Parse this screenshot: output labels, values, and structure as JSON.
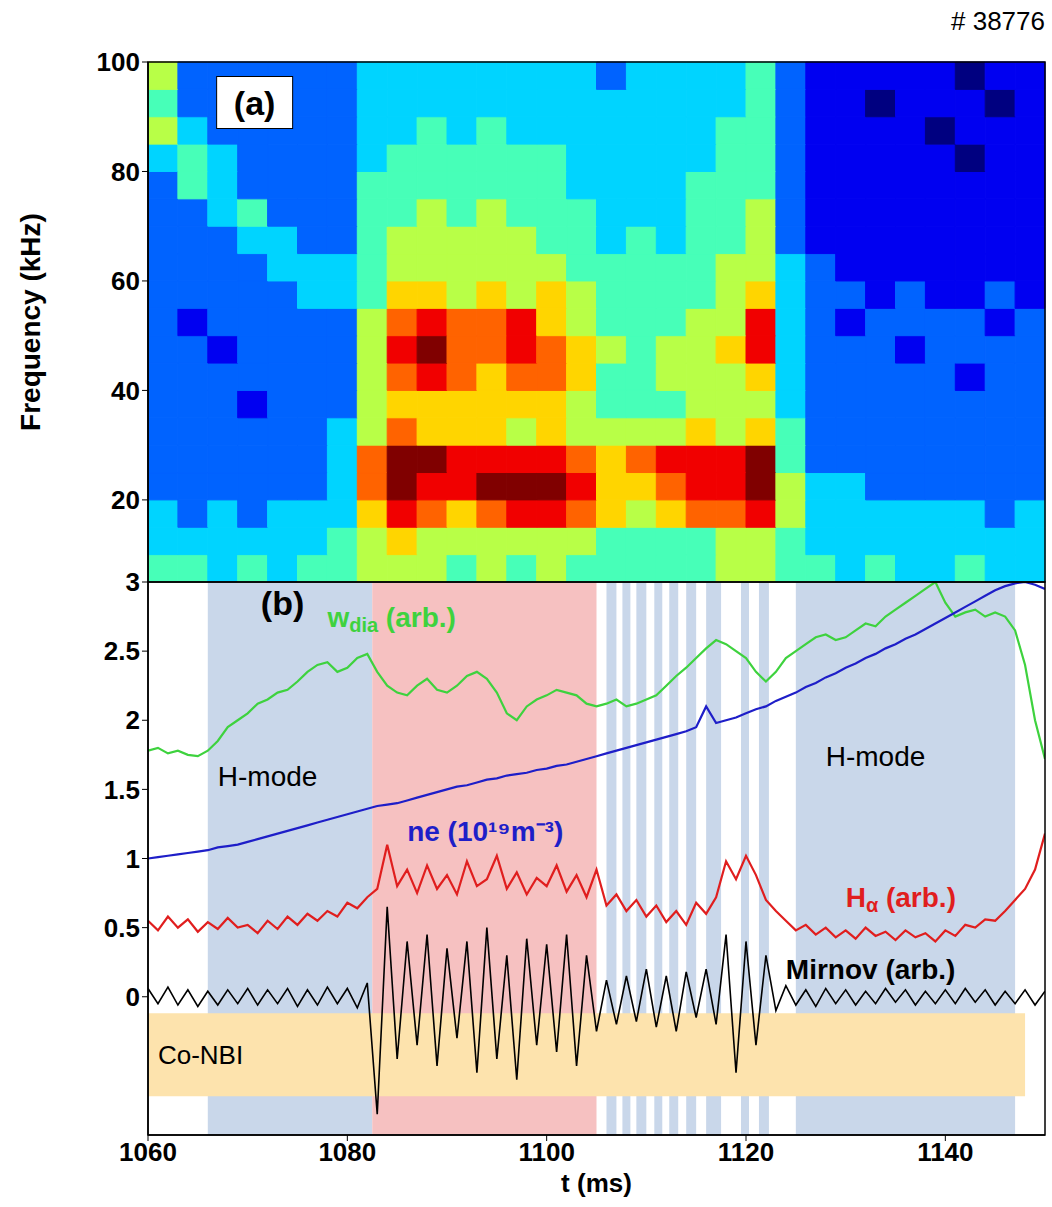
{
  "chart_data": [
    {
      "type": "heatmap",
      "title": "# 38776",
      "label": "(a)",
      "y_label": "Frequency (kHz)",
      "xlim": [
        1060,
        1150
      ],
      "ylim": [
        5,
        100
      ],
      "yticks": [
        20,
        40,
        60,
        80,
        100
      ],
      "tick_labels": "y",
      "color_range": [
        0,
        9
      ],
      "x_edges": [
        1060,
        1063,
        1066,
        1069,
        1072,
        1075,
        1078,
        1081,
        1084,
        1087,
        1090,
        1093,
        1096,
        1099,
        1102,
        1105,
        1108,
        1111,
        1114,
        1117,
        1120,
        1123,
        1126,
        1129,
        1132,
        1135,
        1138,
        1141,
        1144,
        1147,
        1150
      ],
      "y_edges": [
        5,
        10,
        15,
        20,
        25,
        30,
        35,
        40,
        45,
        50,
        55,
        60,
        65,
        70,
        75,
        80,
        85,
        90,
        95,
        100
      ],
      "cells": [
        [
          4,
          4,
          3,
          4,
          3,
          4,
          4,
          5,
          5,
          5,
          4,
          5,
          4,
          5,
          4,
          4,
          4,
          4,
          4,
          5,
          5,
          4,
          4,
          3,
          4,
          3,
          3,
          4,
          3,
          3
        ],
        [
          3,
          3,
          3,
          3,
          3,
          3,
          4,
          5,
          6,
          5,
          5,
          5,
          5,
          5,
          5,
          4,
          4,
          4,
          4,
          5,
          5,
          4,
          3,
          3,
          3,
          3,
          3,
          3,
          3,
          3
        ],
        [
          3,
          2,
          3,
          2,
          3,
          3,
          3,
          6,
          8,
          7,
          6,
          7,
          8,
          8,
          7,
          6,
          5,
          6,
          7,
          7,
          8,
          5,
          3,
          3,
          3,
          3,
          3,
          3,
          2,
          3
        ],
        [
          2,
          2,
          2,
          2,
          2,
          2,
          3,
          7,
          9,
          8,
          8,
          9,
          9,
          9,
          8,
          6,
          6,
          7,
          8,
          8,
          9,
          5,
          3,
          3,
          2,
          2,
          2,
          2,
          2,
          2
        ],
        [
          2,
          2,
          2,
          2,
          2,
          2,
          3,
          7,
          9,
          9,
          8,
          8,
          8,
          8,
          7,
          6,
          7,
          8,
          8,
          8,
          9,
          4,
          2,
          2,
          2,
          2,
          2,
          2,
          2,
          2
        ],
        [
          2,
          2,
          2,
          2,
          2,
          2,
          3,
          5,
          7,
          6,
          6,
          6,
          5,
          6,
          5,
          5,
          5,
          5,
          6,
          5,
          6,
          4,
          2,
          2,
          2,
          2,
          2,
          2,
          2,
          2
        ],
        [
          2,
          2,
          2,
          1,
          2,
          2,
          2,
          5,
          6,
          6,
          6,
          6,
          6,
          6,
          5,
          4,
          4,
          4,
          5,
          5,
          5,
          3,
          2,
          2,
          2,
          2,
          2,
          2,
          2,
          2
        ],
        [
          2,
          2,
          2,
          2,
          2,
          2,
          2,
          5,
          7,
          8,
          7,
          6,
          7,
          7,
          6,
          4,
          4,
          5,
          5,
          5,
          6,
          3,
          2,
          2,
          2,
          2,
          2,
          1,
          2,
          2
        ],
        [
          2,
          2,
          1,
          2,
          2,
          2,
          2,
          5,
          8,
          9,
          7,
          7,
          8,
          7,
          6,
          5,
          4,
          5,
          5,
          6,
          8,
          3,
          2,
          2,
          2,
          1,
          2,
          2,
          2,
          2
        ],
        [
          2,
          1,
          2,
          2,
          2,
          2,
          2,
          5,
          7,
          8,
          7,
          7,
          8,
          6,
          5,
          4,
          4,
          4,
          5,
          5,
          8,
          3,
          2,
          1,
          2,
          2,
          2,
          2,
          1,
          2
        ],
        [
          2,
          2,
          2,
          2,
          2,
          3,
          3,
          4,
          6,
          6,
          5,
          6,
          5,
          6,
          5,
          4,
          4,
          4,
          4,
          5,
          6,
          3,
          2,
          2,
          1,
          2,
          1,
          1,
          2,
          1
        ],
        [
          2,
          2,
          2,
          2,
          3,
          3,
          3,
          4,
          5,
          5,
          5,
          5,
          5,
          5,
          4,
          4,
          4,
          4,
          4,
          5,
          5,
          3,
          2,
          1,
          1,
          1,
          1,
          1,
          1,
          1
        ],
        [
          2,
          2,
          2,
          3,
          3,
          2,
          2,
          4,
          5,
          5,
          5,
          5,
          5,
          4,
          4,
          3,
          4,
          3,
          4,
          4,
          5,
          2,
          1,
          1,
          1,
          1,
          1,
          1,
          1,
          1
        ],
        [
          2,
          2,
          3,
          4,
          2,
          2,
          2,
          4,
          4,
          5,
          4,
          5,
          4,
          4,
          4,
          3,
          3,
          3,
          4,
          4,
          5,
          2,
          1,
          1,
          1,
          1,
          1,
          1,
          1,
          1
        ],
        [
          2,
          4,
          3,
          2,
          2,
          2,
          2,
          4,
          4,
          4,
          4,
          4,
          4,
          4,
          3,
          3,
          3,
          3,
          4,
          4,
          4,
          2,
          1,
          1,
          1,
          1,
          1,
          1,
          1,
          1
        ],
        [
          3,
          4,
          3,
          2,
          2,
          2,
          2,
          3,
          4,
          4,
          4,
          4,
          4,
          4,
          3,
          3,
          3,
          3,
          3,
          4,
          4,
          2,
          1,
          1,
          1,
          1,
          1,
          0,
          1,
          1
        ],
        [
          5,
          3,
          2,
          2,
          2,
          2,
          2,
          3,
          3,
          4,
          3,
          4,
          3,
          3,
          3,
          3,
          3,
          3,
          3,
          4,
          4,
          2,
          1,
          1,
          1,
          1,
          0,
          1,
          1,
          1
        ],
        [
          4,
          2,
          2,
          2,
          2,
          2,
          2,
          3,
          3,
          3,
          3,
          3,
          3,
          3,
          3,
          3,
          3,
          3,
          3,
          3,
          4,
          2,
          1,
          1,
          0,
          1,
          1,
          1,
          0,
          1
        ],
        [
          5,
          2,
          2,
          2,
          2,
          2,
          2,
          3,
          3,
          3,
          3,
          3,
          3,
          3,
          3,
          2,
          3,
          3,
          3,
          3,
          4,
          2,
          1,
          1,
          1,
          1,
          1,
          0,
          1,
          1
        ]
      ]
    },
    {
      "type": "line",
      "label": "(b)",
      "x_label": "t (ms)",
      "xlim": [
        1060,
        1150
      ],
      "xticks": [
        1060,
        1080,
        1100,
        1120,
        1140
      ],
      "ylim": [
        -1,
        3
      ],
      "yticks": [
        0,
        0.5,
        1,
        1.5,
        2,
        2.5,
        3
      ],
      "x": [
        1060,
        1061,
        1062,
        1063,
        1064,
        1065,
        1066,
        1067,
        1068,
        1069,
        1070,
        1071,
        1072,
        1073,
        1074,
        1075,
        1076,
        1077,
        1078,
        1079,
        1080,
        1081,
        1082,
        1083,
        1084,
        1085,
        1086,
        1087,
        1088,
        1089,
        1090,
        1091,
        1092,
        1093,
        1094,
        1095,
        1096,
        1097,
        1098,
        1099,
        1100,
        1101,
        1102,
        1103,
        1104,
        1105,
        1106,
        1107,
        1108,
        1109,
        1110,
        1111,
        1112,
        1113,
        1114,
        1115,
        1116,
        1117,
        1118,
        1119,
        1120,
        1121,
        1122,
        1123,
        1124,
        1125,
        1126,
        1127,
        1128,
        1129,
        1130,
        1131,
        1132,
        1133,
        1134,
        1135,
        1136,
        1137,
        1138,
        1139,
        1140,
        1141,
        1142,
        1143,
        1144,
        1145,
        1146,
        1147,
        1148,
        1149,
        1150
      ],
      "series": [
        {
          "name": "wdia (arb.)",
          "subscript": "dia",
          "color": "#3ed23e",
          "label_x": 1078,
          "label_y": 2.75,
          "values": [
            1.78,
            1.8,
            1.76,
            1.78,
            1.75,
            1.74,
            1.78,
            1.85,
            1.95,
            2.0,
            2.05,
            2.12,
            2.15,
            2.2,
            2.22,
            2.28,
            2.35,
            2.4,
            2.42,
            2.35,
            2.38,
            2.45,
            2.48,
            2.35,
            2.25,
            2.2,
            2.18,
            2.25,
            2.3,
            2.22,
            2.2,
            2.25,
            2.32,
            2.35,
            2.3,
            2.2,
            2.05,
            2.0,
            2.1,
            2.15,
            2.18,
            2.22,
            2.2,
            2.18,
            2.12,
            2.1,
            2.12,
            2.15,
            2.1,
            2.12,
            2.15,
            2.18,
            2.25,
            2.32,
            2.38,
            2.45,
            2.52,
            2.58,
            2.55,
            2.5,
            2.45,
            2.35,
            2.28,
            2.35,
            2.45,
            2.5,
            2.55,
            2.6,
            2.62,
            2.58,
            2.6,
            2.65,
            2.7,
            2.68,
            2.75,
            2.8,
            2.85,
            2.9,
            2.95,
            3.0,
            2.85,
            2.75,
            2.78,
            2.8,
            2.75,
            2.78,
            2.75,
            2.65,
            2.4,
            2.0,
            1.72
          ]
        },
        {
          "name": "ne (10¹⁹m⁻³)",
          "color": "#1e1ec8",
          "label_x": 1086,
          "label_y": 1.2,
          "values": [
            1.0,
            1.01,
            1.02,
            1.03,
            1.04,
            1.05,
            1.06,
            1.08,
            1.09,
            1.1,
            1.12,
            1.14,
            1.16,
            1.18,
            1.2,
            1.22,
            1.24,
            1.26,
            1.28,
            1.3,
            1.32,
            1.34,
            1.36,
            1.38,
            1.39,
            1.4,
            1.42,
            1.44,
            1.46,
            1.48,
            1.5,
            1.52,
            1.53,
            1.55,
            1.57,
            1.58,
            1.6,
            1.61,
            1.62,
            1.64,
            1.65,
            1.67,
            1.68,
            1.7,
            1.72,
            1.74,
            1.76,
            1.78,
            1.8,
            1.82,
            1.84,
            1.86,
            1.88,
            1.9,
            1.92,
            1.95,
            2.1,
            1.98,
            2.0,
            2.02,
            2.05,
            2.08,
            2.1,
            2.14,
            2.17,
            2.2,
            2.24,
            2.27,
            2.31,
            2.34,
            2.38,
            2.41,
            2.45,
            2.48,
            2.52,
            2.55,
            2.59,
            2.62,
            2.66,
            2.7,
            2.74,
            2.78,
            2.82,
            2.86,
            2.9,
            2.94,
            2.97,
            2.99,
            3.0,
            2.98,
            2.95
          ]
        },
        {
          "name": "Hα (arb.)",
          "subscript": "α",
          "color": "#e01e1e",
          "label_x": 1130,
          "label_y": 0.72,
          "values": [
            0.55,
            0.48,
            0.58,
            0.5,
            0.56,
            0.47,
            0.54,
            0.49,
            0.57,
            0.5,
            0.52,
            0.46,
            0.55,
            0.49,
            0.58,
            0.52,
            0.6,
            0.55,
            0.62,
            0.58,
            0.68,
            0.64,
            0.72,
            0.78,
            1.1,
            0.8,
            0.92,
            0.75,
            0.95,
            0.78,
            0.88,
            0.74,
            0.98,
            0.8,
            0.85,
            1.02,
            0.78,
            0.9,
            0.74,
            0.86,
            0.8,
            0.95,
            0.76,
            0.88,
            0.72,
            0.92,
            0.66,
            0.74,
            0.62,
            0.7,
            0.58,
            0.66,
            0.54,
            0.62,
            0.52,
            0.68,
            0.6,
            0.72,
            0.98,
            0.85,
            1.02,
            0.88,
            0.7,
            0.62,
            0.55,
            0.48,
            0.52,
            0.45,
            0.5,
            0.43,
            0.48,
            0.42,
            0.5,
            0.44,
            0.47,
            0.41,
            0.48,
            0.43,
            0.46,
            0.4,
            0.48,
            0.44,
            0.52,
            0.5,
            0.56,
            0.55,
            0.62,
            0.7,
            0.78,
            0.92,
            1.18
          ]
        },
        {
          "name": "Mirnov (arb.)",
          "color": "#000000",
          "label_x": 1124,
          "label_y": 0.2,
          "values": [
            0.06,
            -0.05,
            0.07,
            -0.06,
            0.05,
            -0.07,
            0.04,
            -0.06,
            0.05,
            -0.05,
            0.06,
            -0.06,
            0.05,
            -0.05,
            0.06,
            -0.07,
            0.05,
            -0.06,
            0.07,
            -0.05,
            0.06,
            -0.08,
            0.1,
            -0.85,
            0.65,
            -0.45,
            0.4,
            -0.35,
            0.45,
            -0.5,
            0.35,
            -0.3,
            0.4,
            -0.55,
            0.5,
            -0.45,
            0.3,
            -0.6,
            0.42,
            -0.35,
            0.38,
            -0.4,
            0.45,
            -0.5,
            0.3,
            -0.25,
            0.12,
            -0.2,
            0.15,
            -0.18,
            0.2,
            -0.22,
            0.15,
            -0.25,
            0.18,
            -0.15,
            0.2,
            -0.2,
            0.45,
            -0.55,
            0.4,
            -0.35,
            0.3,
            -0.1,
            0.08,
            -0.06,
            0.05,
            -0.07,
            0.06,
            -0.05,
            0.05,
            -0.06,
            0.04,
            -0.05,
            0.06,
            -0.04,
            0.05,
            -0.06,
            0.04,
            -0.05,
            0.05,
            -0.05,
            0.06,
            -0.04,
            0.05,
            -0.06,
            0.04,
            -0.05,
            0.05,
            -0.06,
            0.04
          ]
        }
      ],
      "regions": [
        {
          "x1": 1066,
          "x2": 1082.5,
          "color": "#c9d7ea",
          "label": "H-mode",
          "label_x": 1067,
          "label_y": 1.6
        },
        {
          "x1": 1082.5,
          "x2": 1105,
          "color": "#f6c1c1"
        },
        {
          "x1": 1106,
          "x2": 1107,
          "color": "#c9d7ea"
        },
        {
          "x1": 1107.6,
          "x2": 1108.4,
          "color": "#c9d7ea"
        },
        {
          "x1": 1109,
          "x2": 1110,
          "color": "#c9d7ea"
        },
        {
          "x1": 1110.8,
          "x2": 1111.6,
          "color": "#c9d7ea"
        },
        {
          "x1": 1112.3,
          "x2": 1113.2,
          "color": "#c9d7ea"
        },
        {
          "x1": 1114,
          "x2": 1115,
          "color": "#c9d7ea"
        },
        {
          "x1": 1116,
          "x2": 1117.5,
          "color": "#c9d7ea"
        },
        {
          "x1": 1119.5,
          "x2": 1120.3,
          "color": "#c9d7ea"
        },
        {
          "x1": 1121.3,
          "x2": 1122.3,
          "color": "#c9d7ea"
        },
        {
          "x1": 1125,
          "x2": 1147,
          "color": "#c9d7ea",
          "label": "H-mode",
          "label_x": 1128,
          "label_y": 1.74
        },
        {
          "x1": 1060,
          "x2": 1148,
          "y1": -0.72,
          "y2": -0.12,
          "color": "#fde3ad",
          "label": "Co-NBI",
          "label_x": 1061,
          "label_y": -0.42
        }
      ]
    }
  ]
}
